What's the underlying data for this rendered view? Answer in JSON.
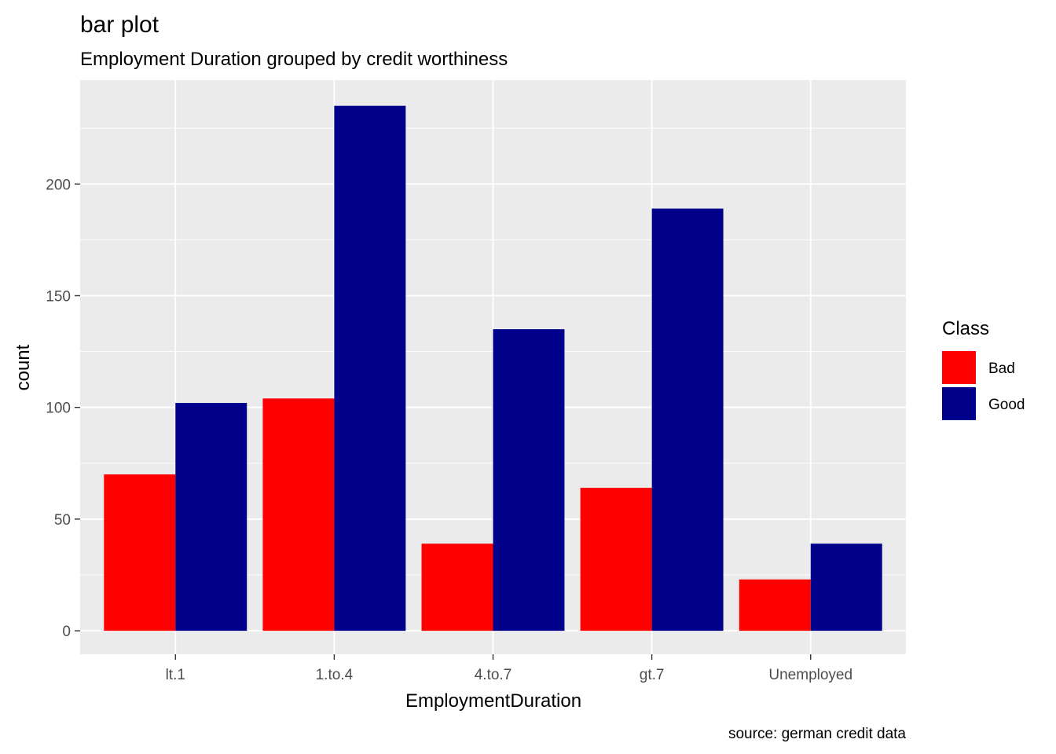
{
  "chart_data": {
    "type": "bar",
    "title": "bar plot",
    "subtitle": "Employment Duration grouped by credit worthiness",
    "xlabel": "EmploymentDuration",
    "ylabel": "count",
    "caption": "source: german credit data",
    "categories": [
      "lt.1",
      "1.to.4",
      "4.to.7",
      "gt.7",
      "Unemployed"
    ],
    "series": [
      {
        "name": "Bad",
        "color": "#FF0000",
        "values": [
          70,
          104,
          39,
          64,
          23
        ]
      },
      {
        "name": "Good",
        "color": "#00008B",
        "values": [
          102,
          235,
          135,
          189,
          39
        ]
      }
    ],
    "ylim": [
      -10.5,
      246.5
    ],
    "yticks": [
      0,
      50,
      100,
      150,
      200
    ],
    "ytick_labels": [
      "0",
      "50",
      "100",
      "150",
      "200"
    ],
    "legend": {
      "title": "Class",
      "position": "right"
    },
    "grid": true,
    "panel_background": "#EBEBEB"
  }
}
